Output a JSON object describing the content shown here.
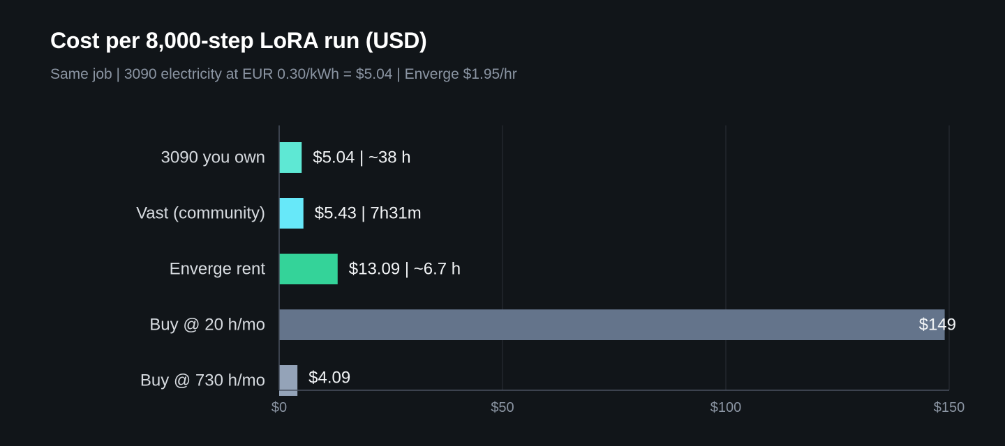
{
  "title": "Cost per 8,000-step LoRA run (USD)",
  "subtitle": "Same job | 3090 electricity at EUR 0.30/kWh = $5.04 | Enverge $1.95/hr",
  "chart_data": {
    "type": "bar",
    "orientation": "horizontal",
    "categories": [
      "3090 you own",
      "Vast (community)",
      "Enverge rent",
      "Buy @ 20 h/mo",
      "Buy @ 730 h/mo"
    ],
    "values": [
      5.04,
      5.43,
      13.09,
      149,
      4.09
    ],
    "labels": [
      "$5.04 | ~38 h",
      "$5.43 | 7h31m",
      "$13.09 | ~6.7 h",
      "$149",
      "$4.09"
    ],
    "colors": [
      "#5ee8d4",
      "#67e8f9",
      "#34d399",
      "#64748b",
      "#94a3b8"
    ],
    "xlim": [
      0,
      150
    ],
    "xticks": [
      0,
      50,
      100,
      150
    ],
    "xtick_labels": [
      "$0",
      "$50",
      "$100",
      "$150"
    ],
    "grid": true,
    "gridline_color": "#2a3038",
    "axis_color": "#4a5260"
  }
}
